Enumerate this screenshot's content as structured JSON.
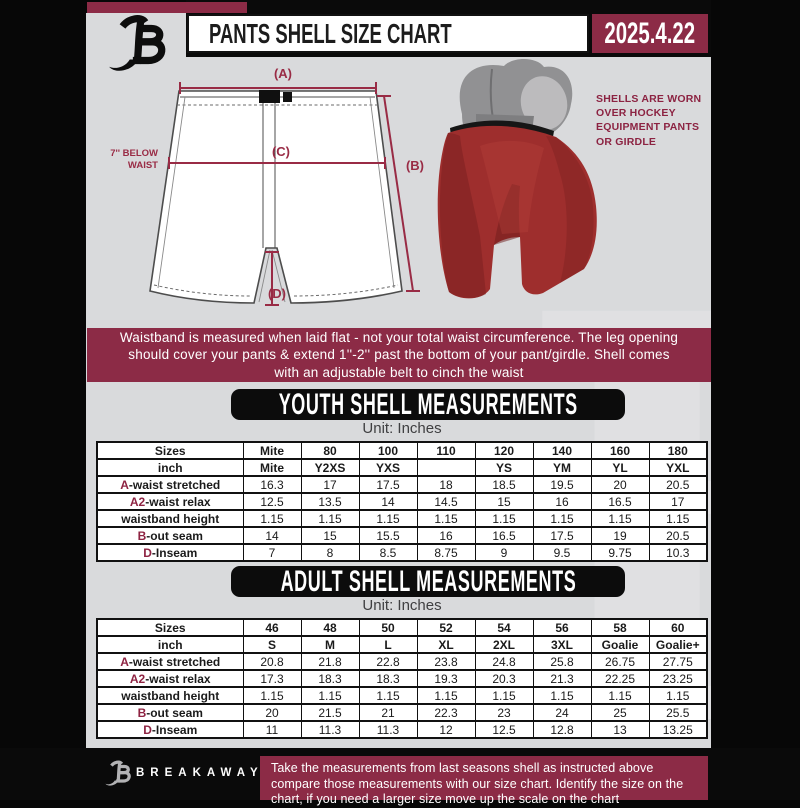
{
  "colors": {
    "maroon": "#8c2b46",
    "accent": "#8e2342",
    "black": "#0a0a0a",
    "panel_gray": "#d9dadc",
    "shell_red": "#9e2e2d"
  },
  "header": {
    "title": "PANTS SHELL SIZE CHART",
    "date": "2025.4.22"
  },
  "diagram": {
    "label_a": "(A)",
    "label_b": "(B)",
    "label_c": "(C)",
    "label_d": "(D)",
    "waist_note": "7'' BELOW\nWAIST",
    "shell_note": "SHELLS ARE WORN\nOVER HOCKEY\nEQUIPMENT PANTS\nOR GIRDLE"
  },
  "info_banner": "Waistband is measured when laid flat - not your total waist circumference. The leg opening should cover your pants & extend 1''-2'' past the bottom of your pant/girdle. Shell comes with an adjustable belt to cinch the waist",
  "youth": {
    "title": "YOUTH SHELL MEASUREMENTS",
    "unit": "Unit: Inches",
    "table": {
      "rows": [
        {
          "prefix": "",
          "label": "Sizes",
          "bold": true,
          "values": [
            "Mite",
            "80",
            "100",
            "110",
            "120",
            "140",
            "160",
            "180"
          ]
        },
        {
          "prefix": "",
          "label": "inch",
          "bold": true,
          "values": [
            "Mite",
            "Y2XS",
            "YXS",
            "",
            "YS",
            "YM",
            "YL",
            "YXL"
          ]
        },
        {
          "prefix": "A",
          "label": "-waist stretched",
          "bold": false,
          "values": [
            "16.3",
            "17",
            "17.5",
            "18",
            "18.5",
            "19.5",
            "20",
            "20.5"
          ]
        },
        {
          "prefix": "A2",
          "label": "-waist relax",
          "bold": false,
          "values": [
            "12.5",
            "13.5",
            "14",
            "14.5",
            "15",
            "16",
            "16.5",
            "17"
          ]
        },
        {
          "prefix": "",
          "label": "waistband height",
          "bold": false,
          "values": [
            "1.15",
            "1.15",
            "1.15",
            "1.15",
            "1.15",
            "1.15",
            "1.15",
            "1.15"
          ]
        },
        {
          "prefix": "B",
          "label": "-out seam",
          "bold": false,
          "values": [
            "14",
            "15",
            "15.5",
            "16",
            "16.5",
            "17.5",
            "19",
            "20.5"
          ]
        },
        {
          "prefix": "D",
          "label": "-Inseam",
          "bold": false,
          "values": [
            "7",
            "8",
            "8.5",
            "8.75",
            "9",
            "9.5",
            "9.75",
            "10.3"
          ]
        }
      ]
    }
  },
  "adult": {
    "title": "ADULT SHELL MEASUREMENTS",
    "unit": "Unit: Inches",
    "table": {
      "rows": [
        {
          "prefix": "",
          "label": "Sizes",
          "bold": true,
          "values": [
            "46",
            "48",
            "50",
            "52",
            "54",
            "56",
            "58",
            "60"
          ]
        },
        {
          "prefix": "",
          "label": "inch",
          "bold": true,
          "values": [
            "S",
            "M",
            "L",
            "XL",
            "2XL",
            "3XL",
            "Goalie",
            "Goalie+"
          ]
        },
        {
          "prefix": "A",
          "label": "-waist stretched",
          "bold": false,
          "values": [
            "20.8",
            "21.8",
            "22.8",
            "23.8",
            "24.8",
            "25.8",
            "26.75",
            "27.75"
          ]
        },
        {
          "prefix": "A2",
          "label": "-waist relax",
          "bold": false,
          "values": [
            "17.3",
            "18.3",
            "18.3",
            "19.3",
            "20.3",
            "21.3",
            "22.25",
            "23.25"
          ]
        },
        {
          "prefix": "",
          "label": "waistband height",
          "bold": false,
          "values": [
            "1.15",
            "1.15",
            "1.15",
            "1.15",
            "1.15",
            "1.15",
            "1.15",
            "1.15"
          ]
        },
        {
          "prefix": "B",
          "label": "-out seam",
          "bold": false,
          "values": [
            "20",
            "21.5",
            "21",
            "22.3",
            "23",
            "24",
            "25",
            "25.5"
          ]
        },
        {
          "prefix": "D",
          "label": "-Inseam",
          "bold": false,
          "values": [
            "11",
            "11.3",
            "11.3",
            "12",
            "12.5",
            "12.8",
            "13",
            "13.25"
          ]
        }
      ]
    }
  },
  "footer": {
    "brand": "BREAKAWAY",
    "note": "Take the measurements from last seasons shell as instructed above compare those measurements  with our size chart. Identify the size on the chart, if you need a larger size move up the scale on the chart"
  }
}
